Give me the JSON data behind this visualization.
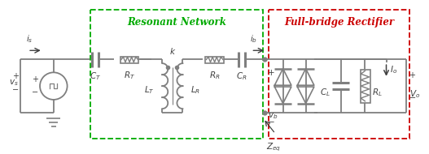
{
  "bg_color": "#ffffff",
  "wire_color": "#7f7f7f",
  "component_color": "#7f7f7f",
  "text_color": "#404040",
  "green_color": "#00aa00",
  "red_color": "#cc0000",
  "resonant_label": "Resonant Network",
  "bridge_label": "Full-bridge Rectifier"
}
